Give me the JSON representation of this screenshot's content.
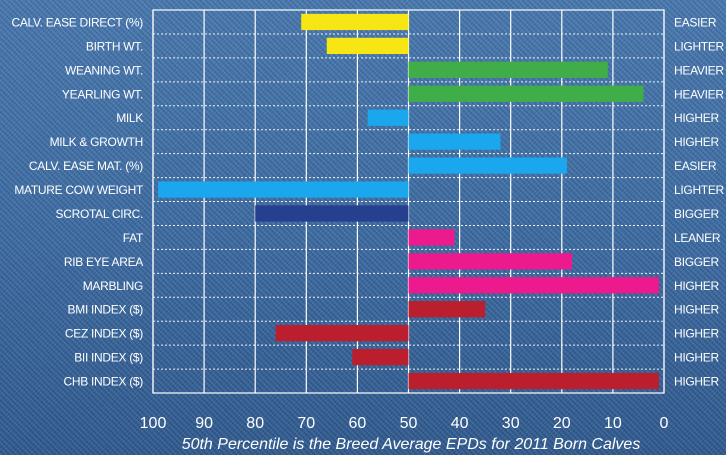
{
  "chart_data": {
    "type": "bar",
    "orientation": "horizontal",
    "x_axis_reversed": true,
    "xlim": [
      100,
      0
    ],
    "baseline": 50,
    "xticks": [
      "100",
      "90",
      "80",
      "70",
      "60",
      "50",
      "40",
      "30",
      "20",
      "10",
      "0"
    ],
    "grid": true,
    "footer": "50th Percentile is the Breed Average EPDs for 2011 Born Calves",
    "rows": [
      {
        "label": "CALV. EASE DIRECT (%)",
        "right_label": "EASIER",
        "value": 71,
        "color": "#f5e614"
      },
      {
        "label": "BIRTH WT.",
        "right_label": "LIGHTER",
        "value": 66,
        "color": "#f5e614"
      },
      {
        "label": "WEANING WT.",
        "right_label": "HEAVIER",
        "value": 11,
        "color": "#3fae49"
      },
      {
        "label": "YEARLING WT.",
        "right_label": "HEAVIER",
        "value": 4,
        "color": "#3fae49"
      },
      {
        "label": "MILK",
        "right_label": "HIGHER",
        "value": 58,
        "color": "#1aa7ee"
      },
      {
        "label": "MILK & GROWTH",
        "right_label": "HIGHER",
        "value": 32,
        "color": "#1aa7ee"
      },
      {
        "label": "CALV. EASE MAT. (%)",
        "right_label": "EASIER",
        "value": 19,
        "color": "#1aa7ee"
      },
      {
        "label": "MATURE COW WEIGHT",
        "right_label": "LIGHTER",
        "value": 99,
        "color": "#1aa7ee"
      },
      {
        "label": "SCROTAL CIRC.",
        "right_label": "BIGGER",
        "value": 80,
        "color": "#263f8f"
      },
      {
        "label": "FAT",
        "right_label": "LEANER",
        "value": 41,
        "color": "#ec1a8c"
      },
      {
        "label": "RIB EYE AREA",
        "right_label": "BIGGER",
        "value": 18,
        "color": "#ec1a8c"
      },
      {
        "label": "MARBLING",
        "right_label": "HIGHER",
        "value": 1,
        "color": "#ec1a8c"
      },
      {
        "label": "BMI INDEX ($)",
        "right_label": "HIGHER",
        "value": 35,
        "color": "#bb1e2d"
      },
      {
        "label": "CEZ INDEX ($)",
        "right_label": "HIGHER",
        "value": 76,
        "color": "#bb1e2d"
      },
      {
        "label": "BII INDEX ($)",
        "right_label": "HIGHER",
        "value": 61,
        "color": "#bb1e2d"
      },
      {
        "label": "CHB INDEX ($)",
        "right_label": "HIGHER",
        "value": 1,
        "color": "#bb1e2d"
      }
    ]
  }
}
